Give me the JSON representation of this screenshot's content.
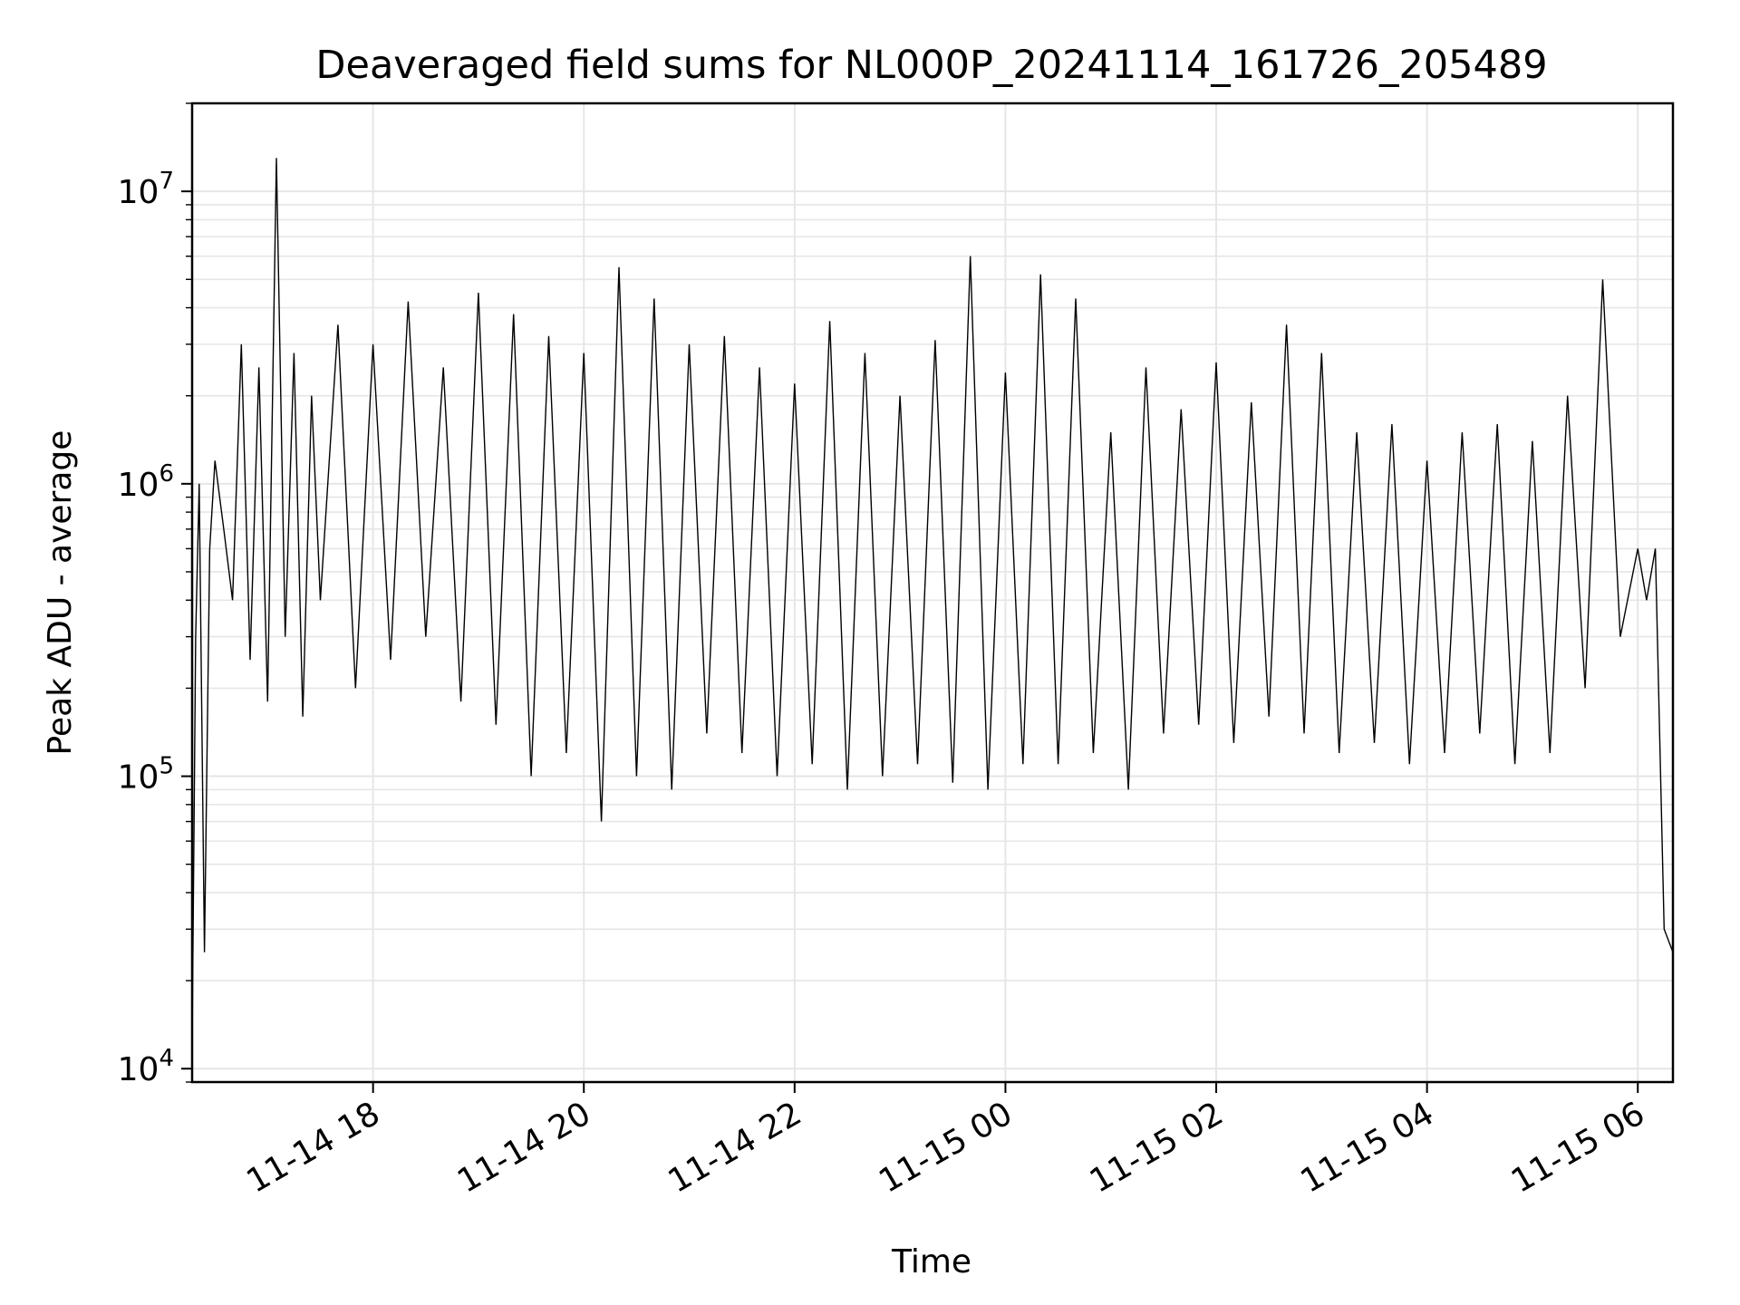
{
  "chart_data": {
    "type": "line",
    "title": "Deaveraged field sums for NL000P_20241114_161726_205489",
    "xlabel": "Time",
    "ylabel": "Peak ADU - average",
    "y_scale": "log",
    "ylim": [
      9000,
      20000000
    ],
    "xlim": [
      "2024-11-14 16:17",
      "2024-11-15 06:20"
    ],
    "x_ticks": [
      {
        "value": "2024-11-14 18:00",
        "label": "11-14 18"
      },
      {
        "value": "2024-11-14 20:00",
        "label": "11-14 20"
      },
      {
        "value": "2024-11-14 22:00",
        "label": "11-14 22"
      },
      {
        "value": "2024-11-15 00:00",
        "label": "11-15 00"
      },
      {
        "value": "2024-11-15 02:00",
        "label": "11-15 02"
      },
      {
        "value": "2024-11-15 04:00",
        "label": "11-15 04"
      },
      {
        "value": "2024-11-15 06:00",
        "label": "11-15 06"
      }
    ],
    "y_ticks": [
      {
        "value": 10000,
        "base": "10",
        "exp": "4"
      },
      {
        "value": 100000,
        "base": "10",
        "exp": "5"
      },
      {
        "value": 1000000,
        "base": "10",
        "exp": "6"
      },
      {
        "value": 10000000,
        "base": "10",
        "exp": "7"
      }
    ],
    "grid": true,
    "line_color": "#000000",
    "series": [
      {
        "x": [
          "2024-11-14 16:17",
          "2024-11-14 16:19",
          "2024-11-14 16:21",
          "2024-11-14 16:24",
          "2024-11-14 16:27",
          "2024-11-14 16:30",
          "2024-11-14 16:35",
          "2024-11-14 16:40",
          "2024-11-14 16:45",
          "2024-11-14 16:50",
          "2024-11-14 16:55",
          "2024-11-14 17:00",
          "2024-11-14 17:05",
          "2024-11-14 17:10",
          "2024-11-14 17:15",
          "2024-11-14 17:20",
          "2024-11-14 17:25",
          "2024-11-14 17:30",
          "2024-11-14 17:40",
          "2024-11-14 17:50",
          "2024-11-14 18:00",
          "2024-11-14 18:10",
          "2024-11-14 18:20",
          "2024-11-14 18:30",
          "2024-11-14 18:40",
          "2024-11-14 18:50",
          "2024-11-14 19:00",
          "2024-11-14 19:10",
          "2024-11-14 19:20",
          "2024-11-14 19:30",
          "2024-11-14 19:40",
          "2024-11-14 19:50",
          "2024-11-14 20:00",
          "2024-11-14 20:10",
          "2024-11-14 20:20",
          "2024-11-14 20:30",
          "2024-11-14 20:40",
          "2024-11-14 20:50",
          "2024-11-14 21:00",
          "2024-11-14 21:10",
          "2024-11-14 21:20",
          "2024-11-14 21:30",
          "2024-11-14 21:40",
          "2024-11-14 21:50",
          "2024-11-14 22:00",
          "2024-11-14 22:10",
          "2024-11-14 22:20",
          "2024-11-14 22:30",
          "2024-11-14 22:40",
          "2024-11-14 22:50",
          "2024-11-14 23:00",
          "2024-11-14 23:10",
          "2024-11-14 23:20",
          "2024-11-14 23:30",
          "2024-11-14 23:40",
          "2024-11-14 23:50",
          "2024-11-15 00:00",
          "2024-11-15 00:10",
          "2024-11-15 00:20",
          "2024-11-15 00:30",
          "2024-11-15 00:40",
          "2024-11-15 00:50",
          "2024-11-15 01:00",
          "2024-11-15 01:10",
          "2024-11-15 01:20",
          "2024-11-15 01:30",
          "2024-11-15 01:40",
          "2024-11-15 01:50",
          "2024-11-15 02:00",
          "2024-11-15 02:10",
          "2024-11-15 02:20",
          "2024-11-15 02:30",
          "2024-11-15 02:40",
          "2024-11-15 02:50",
          "2024-11-15 03:00",
          "2024-11-15 03:10",
          "2024-11-15 03:20",
          "2024-11-15 03:30",
          "2024-11-15 03:40",
          "2024-11-15 03:50",
          "2024-11-15 04:00",
          "2024-11-15 04:10",
          "2024-11-15 04:20",
          "2024-11-15 04:30",
          "2024-11-15 04:40",
          "2024-11-15 04:50",
          "2024-11-15 05:00",
          "2024-11-15 05:10",
          "2024-11-15 05:20",
          "2024-11-15 05:30",
          "2024-11-15 05:40",
          "2024-11-15 05:50",
          "2024-11-15 06:00",
          "2024-11-15 06:05",
          "2024-11-15 06:10",
          "2024-11-15 06:15",
          "2024-11-15 06:20"
        ],
        "y": [
          12000,
          300000,
          1000000,
          25000,
          600000,
          1200000,
          700000,
          400000,
          3000000,
          250000,
          2500000,
          180000,
          13000000,
          300000,
          2800000,
          160000,
          2000000,
          400000,
          3500000,
          200000,
          3000000,
          250000,
          4200000,
          300000,
          2500000,
          180000,
          4500000,
          150000,
          3800000,
          100000,
          3200000,
          120000,
          2800000,
          70000,
          5500000,
          100000,
          4300000,
          90000,
          3000000,
          140000,
          3200000,
          120000,
          2500000,
          100000,
          2200000,
          110000,
          3600000,
          90000,
          2800000,
          100000,
          2000000,
          110000,
          3100000,
          95000,
          6000000,
          90000,
          2400000,
          110000,
          5200000,
          110000,
          4300000,
          120000,
          1500000,
          90000,
          2500000,
          140000,
          1800000,
          150000,
          2600000,
          130000,
          1900000,
          160000,
          3500000,
          140000,
          2800000,
          120000,
          1500000,
          130000,
          1600000,
          110000,
          1200000,
          120000,
          1500000,
          140000,
          1600000,
          110000,
          1400000,
          120000,
          2000000,
          200000,
          5000000,
          300000,
          600000,
          400000,
          600000,
          30000,
          25000
        ]
      }
    ]
  }
}
